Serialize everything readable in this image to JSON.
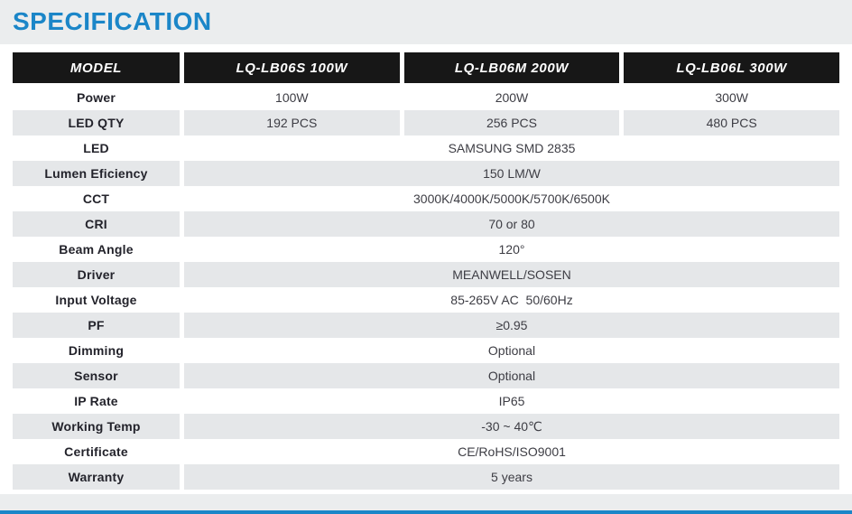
{
  "page": {
    "title": "SPECIFICATION"
  },
  "colors": {
    "accent_blue": "#1b86c8",
    "header_bg": "#171717",
    "row_shade": "#e5e7e9",
    "page_background": "#ebedee"
  },
  "table": {
    "headers": [
      "MODEL",
      "LQ-LB06S 100W",
      "LQ-LB06M 200W",
      "LQ-LB06L 300W"
    ],
    "rows": [
      {
        "label": "Power",
        "values": [
          "100W",
          "200W",
          "300W"
        ],
        "shaded": false
      },
      {
        "label": "LED QTY",
        "values": [
          "192 PCS",
          "256 PCS",
          "480 PCS"
        ],
        "shaded": true
      },
      {
        "label": "LED",
        "span": "SAMSUNG SMD 2835",
        "shaded": false
      },
      {
        "label": "Lumen Eficiency",
        "span": "150 LM/W",
        "shaded": true
      },
      {
        "label": "CCT",
        "span": "3000K/4000K/5000K/5700K/6500K",
        "shaded": false
      },
      {
        "label": "CRI",
        "span": "70 or 80",
        "shaded": true
      },
      {
        "label": "Beam Angle",
        "span": "120°",
        "shaded": false
      },
      {
        "label": "Driver",
        "span": "MEANWELL/SOSEN",
        "shaded": true
      },
      {
        "label": "Input Voltage",
        "span": "85-265V AC  50/60Hz",
        "shaded": false
      },
      {
        "label": "PF",
        "span": "≥0.95",
        "shaded": true
      },
      {
        "label": "Dimming",
        "span": "Optional",
        "shaded": false
      },
      {
        "label": "Sensor",
        "span": "Optional",
        "shaded": true
      },
      {
        "label": "IP Rate",
        "span": "IP65",
        "shaded": false
      },
      {
        "label": "Working Temp",
        "span": "-30 ~ 40℃",
        "shaded": true
      },
      {
        "label": "Certificate",
        "span": "CE/RoHS/ISO9001",
        "shaded": false
      },
      {
        "label": "Warranty",
        "span": "5 years",
        "shaded": true
      }
    ]
  }
}
